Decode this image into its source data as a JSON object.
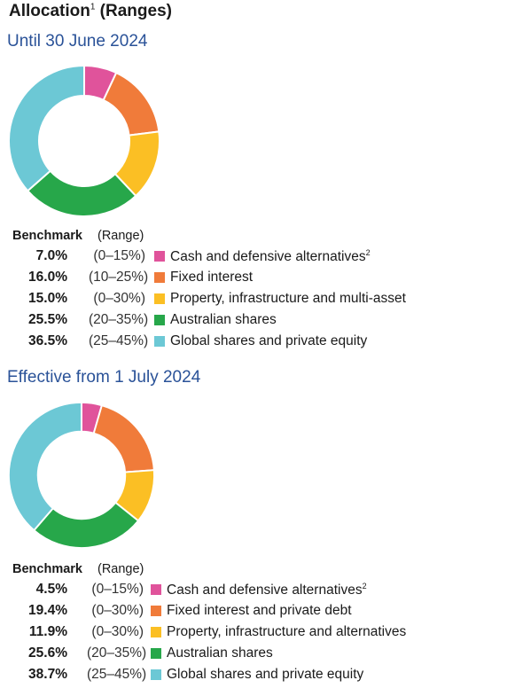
{
  "title": {
    "text": "Allocation",
    "sup": "1",
    "suffix": " (Ranges)"
  },
  "chart_data": [
    {
      "type": "pie",
      "title": "Until 30 June 2024",
      "legend_header": {
        "value": "Benchmark",
        "range": "(Range)"
      },
      "slices": [
        {
          "value_label": "7.0%",
          "value": 7.0,
          "range": "(0–15%)",
          "label": "Cash and defensive alternatives",
          "sup": "2",
          "color": "#e0539b"
        },
        {
          "value_label": "16.0%",
          "value": 16.0,
          "range": "(10–25%)",
          "label": "Fixed interest",
          "sup": "",
          "color": "#f07b3a"
        },
        {
          "value_label": "15.0%",
          "value": 15.0,
          "range": "(0–30%)",
          "label": "Property, infrastructure and multi-asset",
          "sup": "",
          "color": "#fbbf24"
        },
        {
          "value_label": "25.5%",
          "value": 25.5,
          "range": "(20–35%)",
          "label": "Australian shares",
          "sup": "",
          "color": "#27a74a"
        },
        {
          "value_label": "36.5%",
          "value": 36.5,
          "range": "(25–45%)",
          "label": "Global shares and private equity",
          "sup": "",
          "color": "#6cc8d5"
        }
      ]
    },
    {
      "type": "pie",
      "title": "Effective from 1 July 2024",
      "legend_header": {
        "value": "Benchmark",
        "range": "(Range)"
      },
      "slices": [
        {
          "value_label": "4.5%",
          "value": 4.5,
          "range": "(0–15%)",
          "label": "Cash and defensive alternatives",
          "sup": "2",
          "color": "#e0539b"
        },
        {
          "value_label": "19.4%",
          "value": 19.4,
          "range": "(0–30%)",
          "label": "Fixed interest and private debt",
          "sup": "",
          "color": "#f07b3a"
        },
        {
          "value_label": "11.9%",
          "value": 11.9,
          "range": "(0–30%)",
          "label": "Property, infrastructure and alternatives",
          "sup": "",
          "color": "#fbbf24"
        },
        {
          "value_label": "25.6%",
          "value": 25.6,
          "range": "(20–35%)",
          "label": "Australian shares",
          "sup": "",
          "color": "#27a74a"
        },
        {
          "value_label": "38.7%",
          "value": 38.7,
          "range": "(25–45%)",
          "label": "Global shares and private equity",
          "sup": "",
          "color": "#6cc8d5"
        }
      ]
    }
  ]
}
